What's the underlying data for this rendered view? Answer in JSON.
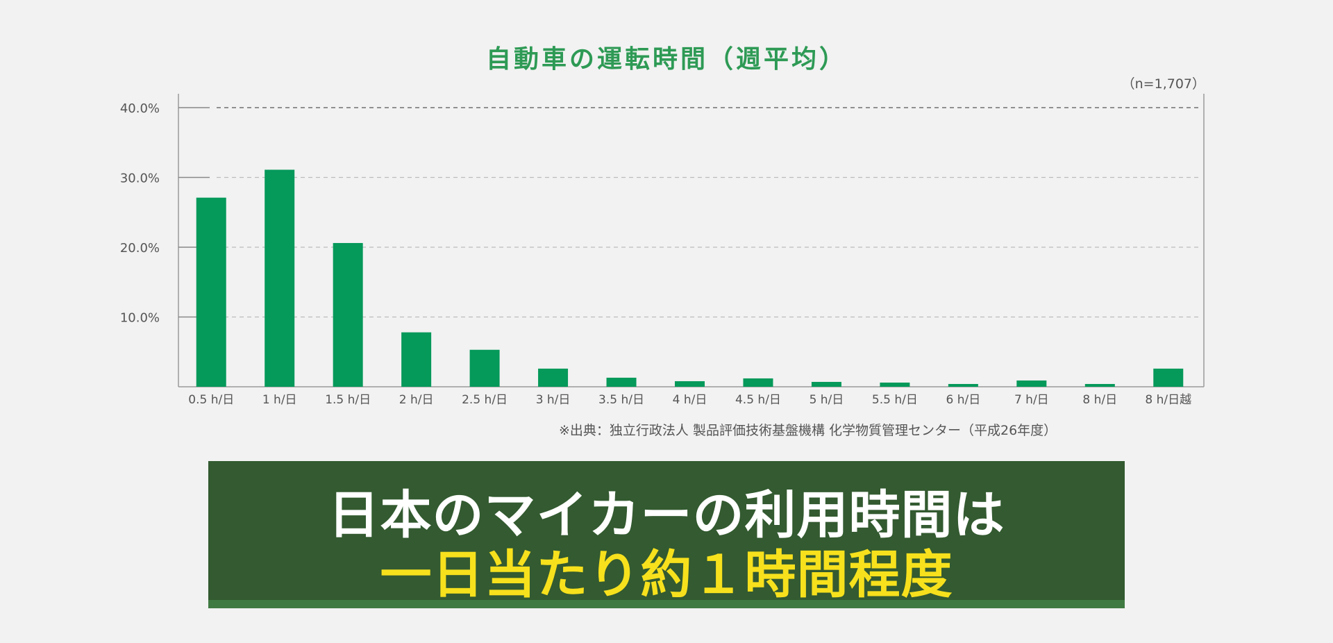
{
  "chart_data": {
    "type": "bar",
    "title": "自動車の運転時間（週平均）",
    "sample_size": "（n=1,707）",
    "categories": [
      "0.5 h/日",
      "1 h/日",
      "1.5 h/日",
      "2 h/日",
      "2.5 h/日",
      "3 h/日",
      "3.5 h/日",
      "4 h/日",
      "4.5 h/日",
      "5 h/日",
      "5.5 h/日",
      "6 h/日",
      "7 h/日",
      "8 h/日",
      "8 h/日越"
    ],
    "values": [
      27.1,
      31.1,
      20.6,
      7.8,
      5.3,
      2.6,
      1.3,
      0.8,
      1.2,
      0.7,
      0.6,
      0.4,
      0.9,
      0.4,
      2.6
    ],
    "y_tick_labels": [
      "10.0%",
      "20.0%",
      "30.0%",
      "40.0%"
    ],
    "ylim": [
      0,
      40
    ],
    "grid": "dashed horizontal",
    "bar_color": "#05995a",
    "source": "※出典：独立行政法人 製品評価技術基盤機構 化学物質管理センター（平成26年度）"
  },
  "headline": {
    "line1": "日本のマイカーの利用時間は",
    "line2": "一日当たり約１時間程度"
  },
  "colors": {
    "title": "#2e9a55",
    "headline_bg": "#335a30",
    "headline_highlight": "#f7e11d"
  }
}
